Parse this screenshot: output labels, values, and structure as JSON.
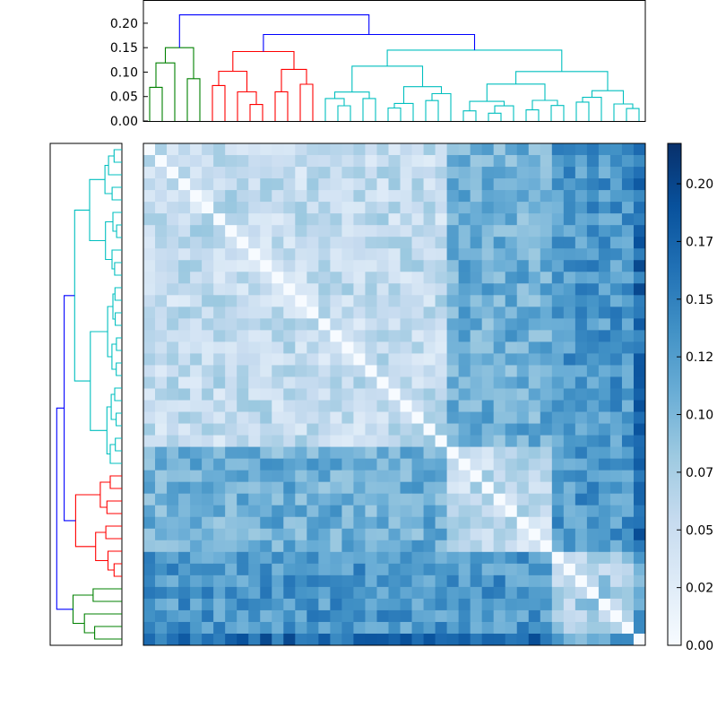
{
  "chart_data": {
    "type": "heatmap",
    "title": "",
    "n": 43,
    "colorbar": {
      "min": 0.0,
      "max": 0.2175,
      "tick_values": [
        0.0,
        0.025,
        0.05,
        0.075,
        0.1,
        0.125,
        0.15,
        0.175,
        0.2
      ],
      "tick_labels": [
        "0.00",
        "0.02",
        "0.05",
        "0.07",
        "0.10",
        "0.12",
        "0.15",
        "0.17",
        "0.20"
      ],
      "colors": [
        "#f7fbff",
        "#deebf7",
        "#c6dbef",
        "#9ecae1",
        "#6baed6",
        "#4292c6",
        "#2171b5",
        "#08519c",
        "#08306b"
      ]
    },
    "top_dendrogram": {
      "ylim": [
        0,
        0.22
      ],
      "tick_values": [
        0.0,
        0.05,
        0.1,
        0.15,
        0.2
      ],
      "tick_labels": [
        "0.00",
        "0.05",
        "0.10",
        "0.15",
        "0.20"
      ],
      "clusters": [
        {
          "color": "#008000",
          "leaves": 5,
          "height": 0.15
        },
        {
          "color": "#ff0000",
          "leaves": 9,
          "height": 0.142
        },
        {
          "color": "#00bfbf",
          "leaves": 26,
          "height": 0.145
        }
      ],
      "root_color": "#0000ff",
      "root_height": 0.217,
      "inner_root_height": 0.177
    },
    "left_dendrogram": {
      "clusters": [
        {
          "color": "#00bfbf",
          "leaves": 26
        },
        {
          "color": "#ff0000",
          "leaves": 9
        },
        {
          "color": "#008000",
          "leaves": 5
        }
      ],
      "root_color": "#0000ff"
    },
    "grid": false,
    "legend": "colorbar-right"
  }
}
